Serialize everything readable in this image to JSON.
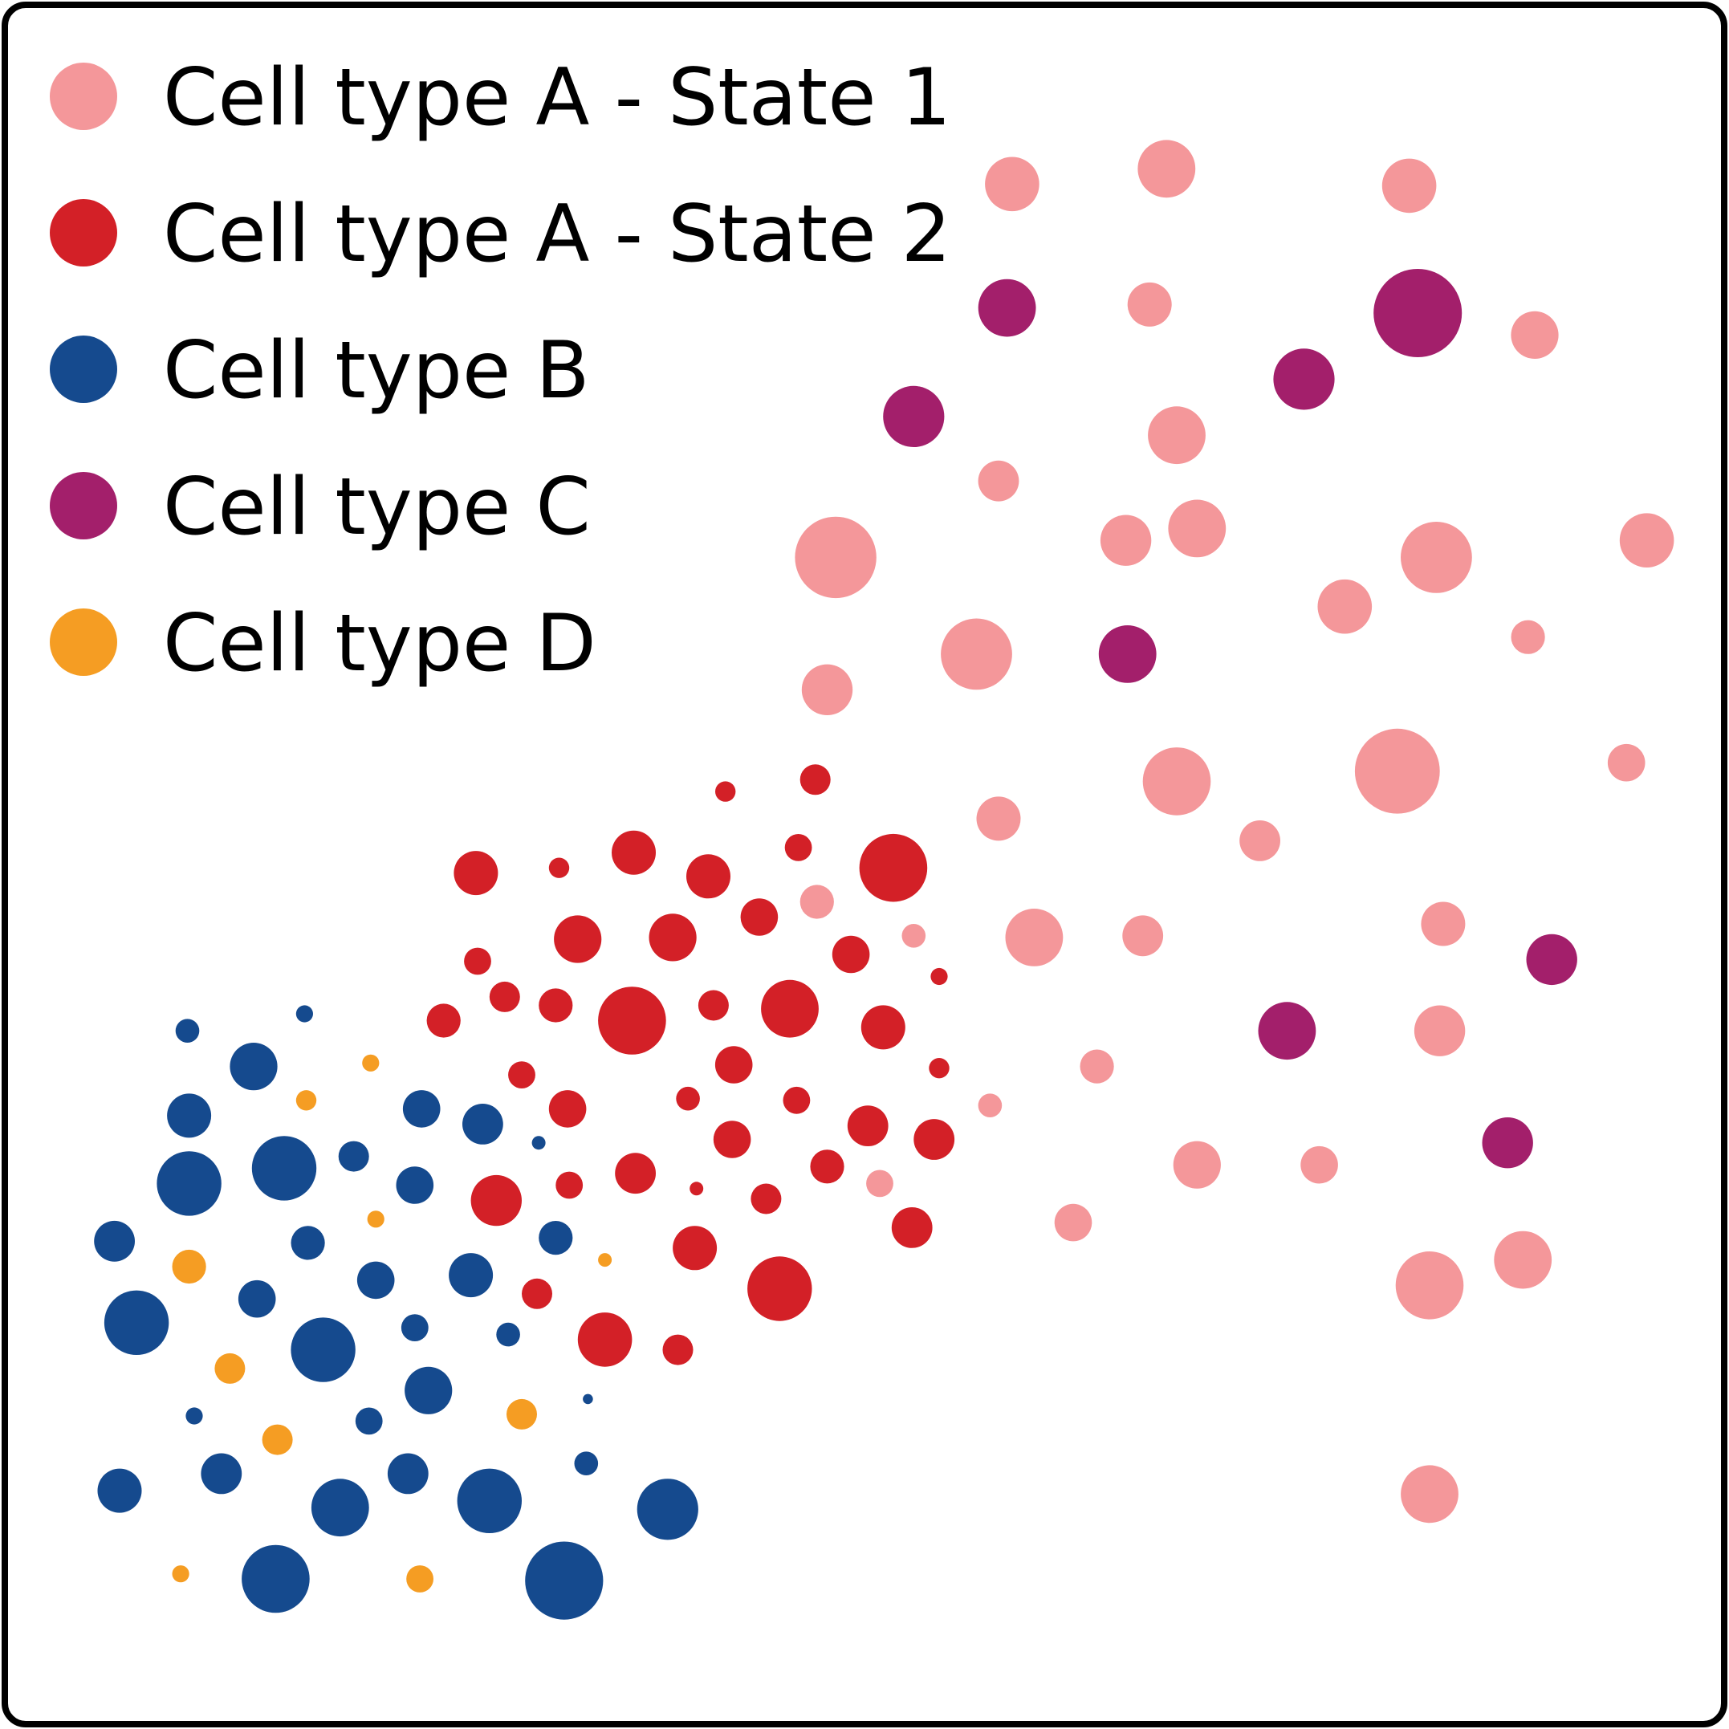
{
  "chart_data": {
    "type": "scatter",
    "title": "",
    "xlabel": "",
    "ylabel": "",
    "xlim": [
      0,
      100
    ],
    "ylim": [
      0,
      100
    ],
    "grid": false,
    "axes_visible": false,
    "legend": {
      "placement": "top-left"
    },
    "series": [
      {
        "name": "Cell type A - State 1",
        "color": "#f4979a",
        "points": [
          {
            "x": 58.7,
            "y": 90.1,
            "s": 1.6
          },
          {
            "x": 67.8,
            "y": 91.0,
            "s": 1.7
          },
          {
            "x": 82.1,
            "y": 90.0,
            "s": 1.6
          },
          {
            "x": 66.8,
            "y": 83.0,
            "s": 1.3
          },
          {
            "x": 89.5,
            "y": 81.2,
            "s": 1.4
          },
          {
            "x": 68.4,
            "y": 75.3,
            "s": 1.7
          },
          {
            "x": 57.9,
            "y": 72.6,
            "s": 1.2
          },
          {
            "x": 48.3,
            "y": 68.1,
            "s": 2.4
          },
          {
            "x": 65.4,
            "y": 69.1,
            "s": 1.5
          },
          {
            "x": 69.6,
            "y": 69.8,
            "s": 1.7
          },
          {
            "x": 83.7,
            "y": 68.1,
            "s": 2.1
          },
          {
            "x": 96.1,
            "y": 69.1,
            "s": 1.6
          },
          {
            "x": 78.3,
            "y": 65.2,
            "s": 1.6
          },
          {
            "x": 56.6,
            "y": 62.4,
            "s": 2.1
          },
          {
            "x": 89.1,
            "y": 63.4,
            "s": 1.0
          },
          {
            "x": 47.8,
            "y": 60.3,
            "s": 1.5
          },
          {
            "x": 68.4,
            "y": 54.9,
            "s": 2.0
          },
          {
            "x": 81.4,
            "y": 55.5,
            "s": 2.5
          },
          {
            "x": 94.9,
            "y": 56.0,
            "s": 1.1
          },
          {
            "x": 57.9,
            "y": 52.7,
            "s": 1.3
          },
          {
            "x": 73.3,
            "y": 51.4,
            "s": 1.2
          },
          {
            "x": 47.2,
            "y": 47.8,
            "s": 1.0
          },
          {
            "x": 60.0,
            "y": 45.7,
            "s": 1.7
          },
          {
            "x": 66.4,
            "y": 45.8,
            "s": 1.2
          },
          {
            "x": 84.1,
            "y": 46.5,
            "s": 1.3
          },
          {
            "x": 52.9,
            "y": 45.8,
            "s": 0.7
          },
          {
            "x": 63.7,
            "y": 38.1,
            "s": 1.0
          },
          {
            "x": 83.9,
            "y": 40.2,
            "s": 1.5
          },
          {
            "x": 57.4,
            "y": 35.8,
            "s": 0.7
          },
          {
            "x": 69.6,
            "y": 32.3,
            "s": 1.4
          },
          {
            "x": 76.8,
            "y": 32.3,
            "s": 1.1
          },
          {
            "x": 50.9,
            "y": 31.2,
            "s": 0.8
          },
          {
            "x": 62.3,
            "y": 28.9,
            "s": 1.1
          },
          {
            "x": 83.3,
            "y": 25.2,
            "s": 2.0
          },
          {
            "x": 88.8,
            "y": 26.7,
            "s": 1.7
          },
          {
            "x": 83.3,
            "y": 12.9,
            "s": 1.7
          }
        ]
      },
      {
        "name": "Cell type A - State 2",
        "color": "#d32027",
        "points": [
          {
            "x": 41.8,
            "y": 54.3,
            "s": 0.6
          },
          {
            "x": 47.1,
            "y": 55.0,
            "s": 0.9
          },
          {
            "x": 27.1,
            "y": 49.5,
            "s": 1.3
          },
          {
            "x": 32.0,
            "y": 49.8,
            "s": 0.6
          },
          {
            "x": 36.4,
            "y": 50.7,
            "s": 1.3
          },
          {
            "x": 40.8,
            "y": 49.3,
            "s": 1.3
          },
          {
            "x": 46.1,
            "y": 51.0,
            "s": 0.8
          },
          {
            "x": 51.7,
            "y": 49.8,
            "s": 2.0
          },
          {
            "x": 33.1,
            "y": 45.6,
            "s": 1.4
          },
          {
            "x": 38.7,
            "y": 45.7,
            "s": 1.4
          },
          {
            "x": 43.8,
            "y": 46.9,
            "s": 1.1
          },
          {
            "x": 49.2,
            "y": 44.7,
            "s": 1.1
          },
          {
            "x": 27.2,
            "y": 44.3,
            "s": 0.8
          },
          {
            "x": 54.4,
            "y": 43.4,
            "s": 0.5
          },
          {
            "x": 25.2,
            "y": 40.8,
            "s": 1.0
          },
          {
            "x": 28.8,
            "y": 42.2,
            "s": 0.9
          },
          {
            "x": 31.8,
            "y": 41.7,
            "s": 1.0
          },
          {
            "x": 36.3,
            "y": 40.8,
            "s": 2.0
          },
          {
            "x": 41.1,
            "y": 41.7,
            "s": 0.9
          },
          {
            "x": 45.6,
            "y": 41.5,
            "s": 1.7
          },
          {
            "x": 51.1,
            "y": 40.4,
            "s": 1.3
          },
          {
            "x": 29.8,
            "y": 37.6,
            "s": 0.8
          },
          {
            "x": 42.3,
            "y": 38.2,
            "s": 1.1
          },
          {
            "x": 54.4,
            "y": 38.0,
            "s": 0.6
          },
          {
            "x": 32.5,
            "y": 35.6,
            "s": 1.1
          },
          {
            "x": 39.6,
            "y": 36.2,
            "s": 0.7
          },
          {
            "x": 46.0,
            "y": 36.1,
            "s": 0.8
          },
          {
            "x": 50.2,
            "y": 34.6,
            "s": 1.2
          },
          {
            "x": 42.2,
            "y": 33.8,
            "s": 1.1
          },
          {
            "x": 54.1,
            "y": 33.8,
            "s": 1.2
          },
          {
            "x": 28.3,
            "y": 30.2,
            "s": 1.5
          },
          {
            "x": 32.6,
            "y": 31.1,
            "s": 0.8
          },
          {
            "x": 36.5,
            "y": 31.8,
            "s": 1.2
          },
          {
            "x": 40.1,
            "y": 30.9,
            "s": 0.4
          },
          {
            "x": 44.2,
            "y": 30.3,
            "s": 0.9
          },
          {
            "x": 47.8,
            "y": 32.2,
            "s": 1.0
          },
          {
            "x": 52.8,
            "y": 28.6,
            "s": 1.2
          },
          {
            "x": 40.0,
            "y": 27.4,
            "s": 1.3
          },
          {
            "x": 30.7,
            "y": 24.7,
            "s": 0.9
          },
          {
            "x": 45.0,
            "y": 25.0,
            "s": 1.9
          },
          {
            "x": 34.7,
            "y": 22.0,
            "s": 1.6
          },
          {
            "x": 39.0,
            "y": 21.4,
            "s": 0.9
          }
        ]
      },
      {
        "name": "Cell type B",
        "color": "#154a8e",
        "points": [
          {
            "x": 10.1,
            "y": 40.2,
            "s": 0.7
          },
          {
            "x": 17.0,
            "y": 41.2,
            "s": 0.5
          },
          {
            "x": 14.0,
            "y": 38.1,
            "s": 1.4
          },
          {
            "x": 10.2,
            "y": 35.2,
            "s": 1.3
          },
          {
            "x": 23.9,
            "y": 35.6,
            "s": 1.1
          },
          {
            "x": 27.5,
            "y": 34.7,
            "s": 1.2
          },
          {
            "x": 30.8,
            "y": 33.6,
            "s": 0.4
          },
          {
            "x": 10.2,
            "y": 31.2,
            "s": 1.9
          },
          {
            "x": 15.8,
            "y": 32.1,
            "s": 1.9
          },
          {
            "x": 19.9,
            "y": 32.8,
            "s": 0.9
          },
          {
            "x": 23.5,
            "y": 31.1,
            "s": 1.1
          },
          {
            "x": 5.8,
            "y": 27.8,
            "s": 1.2
          },
          {
            "x": 17.2,
            "y": 27.7,
            "s": 1.0
          },
          {
            "x": 31.8,
            "y": 28.0,
            "s": 1.0
          },
          {
            "x": 21.2,
            "y": 25.5,
            "s": 1.1
          },
          {
            "x": 26.8,
            "y": 25.8,
            "s": 1.3
          },
          {
            "x": 14.2,
            "y": 24.4,
            "s": 1.1
          },
          {
            "x": 7.1,
            "y": 23.0,
            "s": 1.9
          },
          {
            "x": 18.1,
            "y": 21.4,
            "s": 1.9
          },
          {
            "x": 23.5,
            "y": 22.7,
            "s": 0.8
          },
          {
            "x": 29.0,
            "y": 22.3,
            "s": 0.7
          },
          {
            "x": 24.3,
            "y": 19.0,
            "s": 1.4
          },
          {
            "x": 10.5,
            "y": 17.5,
            "s": 0.5
          },
          {
            "x": 20.8,
            "y": 17.2,
            "s": 0.8
          },
          {
            "x": 33.7,
            "y": 18.5,
            "s": 0.3
          },
          {
            "x": 12.1,
            "y": 14.1,
            "s": 1.2
          },
          {
            "x": 23.1,
            "y": 14.1,
            "s": 1.2
          },
          {
            "x": 6.1,
            "y": 13.1,
            "s": 1.3
          },
          {
            "x": 19.1,
            "y": 12.1,
            "s": 1.7
          },
          {
            "x": 27.9,
            "y": 12.5,
            "s": 1.9
          },
          {
            "x": 33.6,
            "y": 14.7,
            "s": 0.7
          },
          {
            "x": 38.4,
            "y": 12.0,
            "s": 1.8
          },
          {
            "x": 15.3,
            "y": 7.9,
            "s": 2.0
          },
          {
            "x": 32.3,
            "y": 7.8,
            "s": 2.3
          }
        ]
      },
      {
        "name": "Cell type C",
        "color": "#a31f6b",
        "points": [
          {
            "x": 58.4,
            "y": 82.8,
            "s": 1.7
          },
          {
            "x": 82.6,
            "y": 82.5,
            "s": 2.6
          },
          {
            "x": 75.9,
            "y": 78.6,
            "s": 1.8
          },
          {
            "x": 52.9,
            "y": 76.4,
            "s": 1.8
          },
          {
            "x": 65.5,
            "y": 62.4,
            "s": 1.7
          },
          {
            "x": 90.5,
            "y": 44.4,
            "s": 1.5
          },
          {
            "x": 74.9,
            "y": 40.2,
            "s": 1.7
          },
          {
            "x": 87.9,
            "y": 33.6,
            "s": 1.5
          }
        ]
      },
      {
        "name": "Cell type D",
        "color": "#f59d23",
        "points": [
          {
            "x": 20.9,
            "y": 38.3,
            "s": 0.5
          },
          {
            "x": 17.1,
            "y": 36.1,
            "s": 0.6
          },
          {
            "x": 21.2,
            "y": 29.1,
            "s": 0.5
          },
          {
            "x": 34.7,
            "y": 26.7,
            "s": 0.4
          },
          {
            "x": 10.2,
            "y": 26.3,
            "s": 1.0
          },
          {
            "x": 12.6,
            "y": 20.3,
            "s": 0.9
          },
          {
            "x": 29.8,
            "y": 17.6,
            "s": 0.9
          },
          {
            "x": 15.4,
            "y": 16.1,
            "s": 0.9
          },
          {
            "x": 9.7,
            "y": 8.2,
            "s": 0.5
          },
          {
            "x": 23.8,
            "y": 7.9,
            "s": 0.8
          }
        ]
      }
    ]
  }
}
